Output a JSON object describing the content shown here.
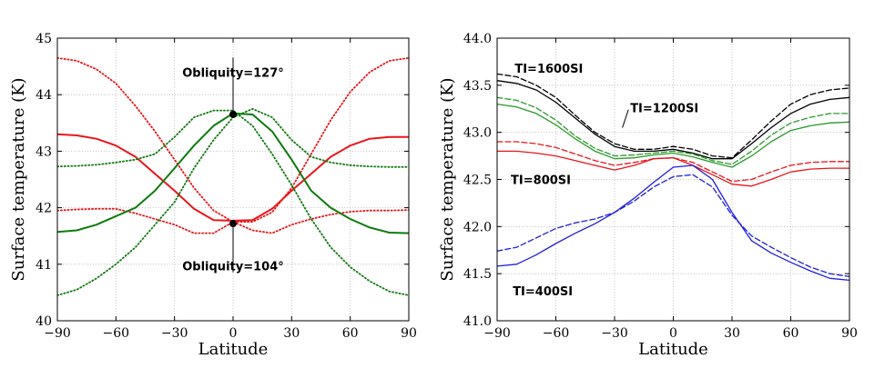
{
  "chart_data": [
    {
      "type": "line",
      "xlabel": "Latitude",
      "ylabel": "Surface temperature (K)",
      "xlim": [
        -90,
        90
      ],
      "ylim": [
        40,
        45
      ],
      "xticks": [
        -90,
        -60,
        -30,
        0,
        30,
        60,
        90
      ],
      "xtick_labels": [
        "−90",
        "−60",
        "−30",
        "0",
        "30",
        "60",
        "90"
      ],
      "yticks": [
        40,
        41,
        42,
        43,
        44,
        45
      ],
      "ytick_labels": [
        "40",
        "41",
        "42",
        "43",
        "44",
        "45"
      ],
      "grid": true,
      "series": [
        {
          "name": "red-solid",
          "color": "#e8161b",
          "style": "solid",
          "x": [
            -90,
            -80,
            -70,
            -60,
            -50,
            -40,
            -30,
            -20,
            -10,
            0,
            10,
            20,
            30,
            40,
            50,
            60,
            70,
            80,
            90
          ],
          "y": [
            43.3,
            43.28,
            43.22,
            43.1,
            42.9,
            42.6,
            42.3,
            41.98,
            41.78,
            41.77,
            41.78,
            41.98,
            42.3,
            42.6,
            42.9,
            43.1,
            43.22,
            43.25,
            43.25
          ]
        },
        {
          "name": "red-dotted-a",
          "color": "#e8161b",
          "style": "dotted",
          "x": [
            -90,
            -80,
            -70,
            -60,
            -50,
            -40,
            -30,
            -20,
            -10,
            0,
            10,
            20,
            30,
            40,
            50,
            60,
            70,
            80,
            90
          ],
          "y": [
            44.65,
            44.6,
            44.45,
            44.2,
            43.8,
            43.35,
            42.85,
            42.35,
            41.95,
            41.75,
            41.75,
            41.92,
            42.35,
            42.95,
            43.55,
            44.05,
            44.4,
            44.6,
            44.65
          ]
        },
        {
          "name": "red-dotted-b",
          "color": "#e8161b",
          "style": "dotted",
          "x": [
            -90,
            -80,
            -70,
            -60,
            -50,
            -40,
            -30,
            -20,
            -10,
            0,
            10,
            20,
            30,
            40,
            50,
            60,
            70,
            80,
            90
          ],
          "y": [
            41.95,
            41.97,
            41.98,
            41.98,
            41.9,
            41.8,
            41.7,
            41.55,
            41.55,
            41.75,
            41.6,
            41.55,
            41.7,
            41.8,
            41.88,
            41.93,
            41.95,
            41.95,
            41.96
          ]
        },
        {
          "name": "green-solid",
          "color": "#0f7a0f",
          "style": "solid",
          "x": [
            -90,
            -80,
            -70,
            -60,
            -50,
            -40,
            -30,
            -20,
            -10,
            0,
            10,
            20,
            30,
            40,
            50,
            60,
            70,
            80,
            90
          ],
          "y": [
            41.57,
            41.6,
            41.7,
            41.85,
            42.0,
            42.3,
            42.7,
            43.1,
            43.45,
            43.67,
            43.65,
            43.35,
            42.85,
            42.3,
            42.0,
            41.8,
            41.65,
            41.56,
            41.55
          ]
        },
        {
          "name": "green-dotted-a",
          "color": "#0f7a0f",
          "style": "dotted",
          "x": [
            -90,
            -80,
            -70,
            -60,
            -50,
            -40,
            -30,
            -20,
            -10,
            0,
            10,
            20,
            30,
            40,
            50,
            60,
            70,
            80,
            90
          ],
          "y": [
            40.45,
            40.55,
            40.75,
            41.0,
            41.3,
            41.7,
            42.1,
            42.7,
            43.2,
            43.6,
            43.75,
            43.6,
            43.2,
            42.9,
            42.8,
            42.75,
            42.73,
            42.72,
            42.72
          ]
        },
        {
          "name": "green-dotted-b",
          "color": "#0f7a0f",
          "style": "dotted",
          "x": [
            -90,
            -80,
            -70,
            -60,
            -50,
            -40,
            -30,
            -20,
            -10,
            0,
            10,
            20,
            30,
            40,
            50,
            60,
            70,
            80,
            90
          ],
          "y": [
            42.73,
            42.74,
            42.76,
            42.8,
            42.85,
            42.95,
            43.25,
            43.6,
            43.72,
            43.72,
            43.45,
            42.95,
            42.4,
            41.8,
            41.3,
            40.95,
            40.7,
            40.52,
            40.45
          ]
        }
      ],
      "markers": [
        {
          "name": "obliquity-127-marker",
          "x": 0,
          "y": 43.65
        },
        {
          "name": "obliquity-104-marker",
          "x": 0,
          "y": 41.72
        }
      ],
      "annotations": [
        {
          "name": "annot-obliquity-127",
          "text": "Obliquity=127°",
          "x": 0,
          "y": 44.4,
          "point_y": 43.65
        },
        {
          "name": "annot-obliquity-104",
          "text": "Obliquity=104°",
          "x": 0,
          "y": 40.97,
          "point_y": 41.72
        }
      ]
    },
    {
      "type": "line",
      "xlabel": "Latitude",
      "ylabel": "Surface temperature (K)",
      "xlim": [
        -90,
        90
      ],
      "ylim": [
        41.0,
        44.0
      ],
      "xticks": [
        -90,
        -60,
        -30,
        0,
        30,
        60,
        90
      ],
      "xtick_labels": [
        "−90",
        "−60",
        "−30",
        "0",
        "30",
        "60",
        "90"
      ],
      "yticks": [
        41.0,
        41.5,
        42.0,
        42.5,
        43.0,
        43.5,
        44.0
      ],
      "ytick_labels": [
        "41.0",
        "41.5",
        "42.0",
        "42.5",
        "43.0",
        "43.5",
        "44.0"
      ],
      "grid": true,
      "series": [
        {
          "name": "ti1600-solid",
          "color": "#000000",
          "style": "solid",
          "x": [
            -90,
            -80,
            -70,
            -60,
            -50,
            -40,
            -30,
            -20,
            -10,
            0,
            10,
            20,
            30,
            40,
            50,
            60,
            70,
            80,
            90
          ],
          "y": [
            43.55,
            43.52,
            43.45,
            43.32,
            43.15,
            42.98,
            42.85,
            42.8,
            42.8,
            42.82,
            42.78,
            42.72,
            42.72,
            42.88,
            43.05,
            43.2,
            43.3,
            43.35,
            43.37
          ]
        },
        {
          "name": "ti1600-dashed",
          "color": "#000000",
          "style": "dashed",
          "x": [
            -90,
            -80,
            -70,
            -60,
            -50,
            -40,
            -30,
            -20,
            -10,
            0,
            10,
            20,
            30,
            40,
            50,
            60,
            70,
            80,
            90
          ],
          "y": [
            43.62,
            43.59,
            43.5,
            43.37,
            43.18,
            43.0,
            42.88,
            42.82,
            42.82,
            42.85,
            42.82,
            42.75,
            42.73,
            42.92,
            43.12,
            43.3,
            43.4,
            43.45,
            43.47
          ]
        },
        {
          "name": "ti1200-solid",
          "color": "#2a9a2a",
          "style": "solid",
          "x": [
            -90,
            -80,
            -70,
            -60,
            -50,
            -40,
            -30,
            -20,
            -10,
            0,
            10,
            20,
            30,
            40,
            50,
            60,
            70,
            80,
            90
          ],
          "y": [
            43.3,
            43.27,
            43.2,
            43.08,
            42.93,
            42.8,
            42.72,
            42.73,
            42.76,
            42.78,
            42.74,
            42.68,
            42.63,
            42.75,
            42.9,
            43.02,
            43.07,
            43.1,
            43.11
          ]
        },
        {
          "name": "ti1200-dashed",
          "color": "#2a9a2a",
          "style": "dashed",
          "x": [
            -90,
            -80,
            -70,
            -60,
            -50,
            -40,
            -30,
            -20,
            -10,
            0,
            10,
            20,
            30,
            40,
            50,
            60,
            70,
            80,
            90
          ],
          "y": [
            43.37,
            43.34,
            43.26,
            43.13,
            42.96,
            42.83,
            42.75,
            42.76,
            42.78,
            42.8,
            42.77,
            42.7,
            42.66,
            42.8,
            42.97,
            43.1,
            43.16,
            43.2,
            43.2
          ]
        },
        {
          "name": "ti800-solid",
          "color": "#e8161b",
          "style": "solid",
          "x": [
            -90,
            -80,
            -70,
            -60,
            -50,
            -40,
            -30,
            -20,
            -10,
            0,
            10,
            20,
            30,
            40,
            50,
            60,
            70,
            80,
            90
          ],
          "y": [
            42.8,
            42.8,
            42.78,
            42.75,
            42.7,
            42.65,
            42.6,
            42.65,
            42.72,
            42.73,
            42.65,
            42.55,
            42.45,
            42.43,
            42.5,
            42.58,
            42.61,
            42.62,
            42.62
          ]
        },
        {
          "name": "ti800-dashed",
          "color": "#e8161b",
          "style": "dashed",
          "x": [
            -90,
            -80,
            -70,
            -60,
            -50,
            -40,
            -30,
            -20,
            -10,
            0,
            10,
            20,
            30,
            40,
            50,
            60,
            70,
            80,
            90
          ],
          "y": [
            42.9,
            42.9,
            42.88,
            42.84,
            42.77,
            42.7,
            42.65,
            42.68,
            42.72,
            42.73,
            42.68,
            42.58,
            42.48,
            42.5,
            42.58,
            42.65,
            42.68,
            42.69,
            42.69
          ]
        },
        {
          "name": "ti400-solid",
          "color": "#1f1fdd",
          "style": "solid",
          "x": [
            -90,
            -80,
            -70,
            -60,
            -50,
            -40,
            -30,
            -20,
            -10,
            0,
            10,
            20,
            30,
            40,
            50,
            60,
            70,
            80,
            90
          ],
          "y": [
            41.58,
            41.6,
            41.7,
            41.82,
            41.93,
            42.03,
            42.15,
            42.3,
            42.47,
            42.63,
            42.65,
            42.5,
            42.15,
            41.85,
            41.72,
            41.62,
            41.53,
            41.45,
            41.43
          ]
        },
        {
          "name": "ti400-dashed",
          "color": "#1f1fdd",
          "style": "dashed",
          "x": [
            -90,
            -80,
            -70,
            -60,
            -50,
            -40,
            -30,
            -20,
            -10,
            0,
            10,
            20,
            30,
            40,
            50,
            60,
            70,
            80,
            90
          ],
          "y": [
            41.74,
            41.78,
            41.88,
            41.98,
            42.04,
            42.08,
            42.15,
            42.27,
            42.42,
            42.53,
            42.55,
            42.42,
            42.12,
            41.9,
            41.78,
            41.67,
            41.57,
            41.5,
            41.47
          ]
        }
      ],
      "annotations": [
        {
          "name": "label-ti1600",
          "text": "TI=1600SI",
          "x": -81,
          "y": 43.68
        },
        {
          "name": "label-ti1200",
          "text": "TI=1200SI",
          "x": -22,
          "y": 43.26,
          "line_to": {
            "x": -26,
            "y": 43.05
          }
        },
        {
          "name": "label-ti800",
          "text": "TI=800SI",
          "x": -83,
          "y": 42.5
        },
        {
          "name": "label-ti400",
          "text": "TI=400SI",
          "x": -82,
          "y": 41.32
        }
      ]
    }
  ]
}
